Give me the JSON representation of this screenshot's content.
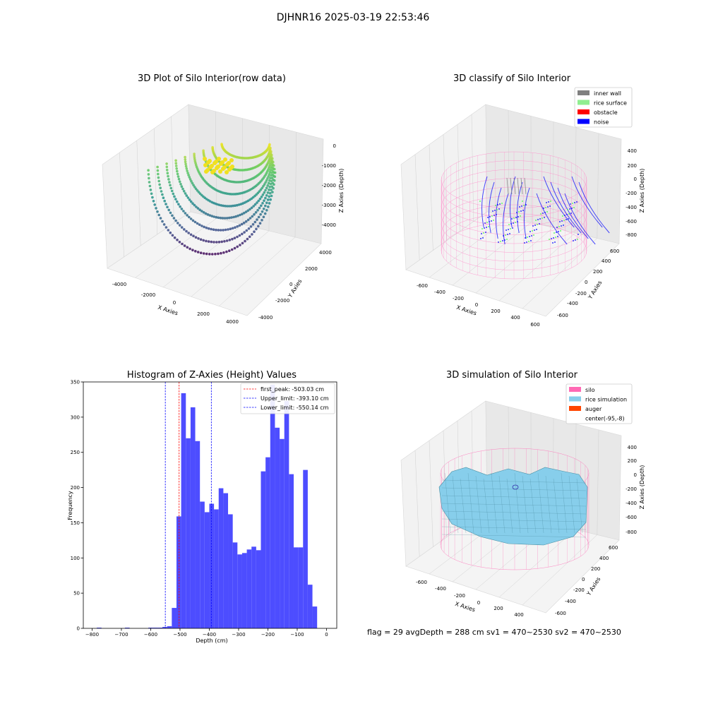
{
  "figure": {
    "title": "DJHNR16 2025-03-19 22:53:46",
    "footer": "flag = 29  avgDepth = 288 cm  sv1 = 470~2530  sv2 = 470~2530"
  },
  "panels": {
    "raw": {
      "title": "3D Plot of Silo Interior(row data)",
      "xlabel": "X Axies",
      "ylabel": "Y Axies",
      "zlabel": "Z Axies (Depth)",
      "xticks": [
        "-4000",
        "-2000",
        "0",
        "2000",
        "4000"
      ],
      "yticks": [
        "-4000",
        "-2000",
        "0",
        "2000",
        "4000"
      ],
      "zticks": [
        "0",
        "-1000",
        "-2000",
        "-3000",
        "-4000"
      ]
    },
    "classify": {
      "title": "3D classify of Silo Interior",
      "xlabel": "X Axies",
      "ylabel": "Y Axies",
      "zlabel": "Z Axies (Depth)",
      "xticks": [
        "-600",
        "-400",
        "-200",
        "0",
        "200",
        "400",
        "600"
      ],
      "yticks": [
        "-600",
        "-400",
        "-200",
        "0",
        "200",
        "400",
        "600"
      ],
      "zticks": [
        "400",
        "200",
        "0",
        "-200",
        "-400",
        "-600",
        "-800"
      ],
      "legend": [
        {
          "label": "inner wall",
          "color": "#808080"
        },
        {
          "label": "rice surface",
          "color": "#90ee90"
        },
        {
          "label": "obstacle",
          "color": "#ff0000"
        },
        {
          "label": "noise",
          "color": "#0000ff"
        }
      ]
    },
    "simulation": {
      "title": "3D simulation of Silo Interior",
      "xlabel": "X Axies",
      "ylabel": "Y Axies",
      "zlabel": "Z Axies (Depth)",
      "xticks": [
        "-600",
        "-400",
        "-200",
        "0",
        "200",
        "400"
      ],
      "yticks": [
        "-600",
        "-400",
        "-200",
        "0",
        "200",
        "400",
        "600"
      ],
      "zticks": [
        "400",
        "200",
        "0",
        "-200",
        "-400",
        "-600",
        "-800"
      ],
      "legend": [
        {
          "label": "silo",
          "color": "#ff69b4"
        },
        {
          "label": "rice simulation",
          "color": "#87ceeb"
        },
        {
          "label": "auger",
          "color": "#ff4500"
        },
        {
          "label": "center(-95,-8)",
          "color": ""
        }
      ]
    }
  },
  "chart_data": [
    {
      "type": "scatter",
      "title": "3D Plot of Silo Interior(row data)",
      "xlabel": "X Axies",
      "ylabel": "Y Axies",
      "zlabel": "Z Axies (Depth)",
      "xlim": [
        -4000,
        4000
      ],
      "ylim": [
        -4000,
        4000
      ],
      "zlim": [
        -4500,
        0
      ],
      "colormap": "viridis"
    },
    {
      "type": "scatter",
      "title": "3D classify of Silo Interior",
      "xlabel": "X Axies",
      "ylabel": "Y Axies",
      "zlabel": "Z Axies (Depth)",
      "xlim": [
        -700,
        600
      ],
      "ylim": [
        -700,
        600
      ],
      "zlim": [
        -900,
        450
      ],
      "series": [
        {
          "name": "inner wall",
          "color": "#808080"
        },
        {
          "name": "rice surface",
          "color": "#90ee90"
        },
        {
          "name": "obstacle",
          "color": "#ff0000"
        },
        {
          "name": "noise",
          "color": "#0000ff"
        }
      ]
    },
    {
      "type": "bar",
      "title": "Histogram of Z-Axies (Height) Values",
      "xlabel": "Depth (cm)",
      "ylabel": "Frequency",
      "xlim": [
        -830,
        35
      ],
      "ylim": [
        0,
        350
      ],
      "xticks": [
        -800,
        -700,
        -600,
        -500,
        -400,
        -300,
        -200,
        -100,
        0
      ],
      "yticks": [
        0,
        50,
        100,
        150,
        200,
        250,
        300,
        350
      ],
      "bin_width": 16,
      "bin_starts": [
        -784,
        -688,
        -608,
        -592,
        -576,
        -560,
        -544,
        -528,
        -512,
        -496,
        -480,
        -464,
        -448,
        -432,
        -416,
        -400,
        -384,
        -368,
        -352,
        -336,
        -320,
        -304,
        -288,
        -272,
        -256,
        -240,
        -224,
        -208,
        -192,
        -176,
        -160,
        -144,
        -128,
        -112,
        -96,
        -80,
        -64,
        -48,
        -32,
        -16
      ],
      "values": [
        1,
        1,
        1,
        1,
        1,
        2,
        3,
        29,
        159,
        334,
        270,
        314,
        266,
        180,
        165,
        177,
        169,
        199,
        192,
        162,
        122,
        105,
        107,
        112,
        116,
        111,
        223,
        243,
        346,
        285,
        269,
        323,
        219,
        115,
        115,
        225,
        62,
        31,
        0,
        0
      ],
      "vlines": [
        {
          "label": "first_peak: -503.03 cm",
          "x": -503.03,
          "color": "#ff0000"
        },
        {
          "label": "Upper_limit: -393.10 cm",
          "x": -393.1,
          "color": "#0000ff"
        },
        {
          "label": "Lower_limit: -550.14 cm",
          "x": -550.14,
          "color": "#0000ff"
        }
      ],
      "bar_color": "#4d4dff",
      "legend": "top-right"
    },
    {
      "type": "area",
      "title": "3D simulation of Silo Interior",
      "xlabel": "X Axies",
      "ylabel": "Y Axies",
      "zlabel": "Z Axies (Depth)",
      "series": [
        {
          "name": "silo",
          "color": "#ff69b4"
        },
        {
          "name": "rice simulation",
          "color": "#87ceeb"
        },
        {
          "name": "auger",
          "color": "#ff4500"
        },
        {
          "name": "center(-95,-8)",
          "color": ""
        }
      ]
    }
  ]
}
